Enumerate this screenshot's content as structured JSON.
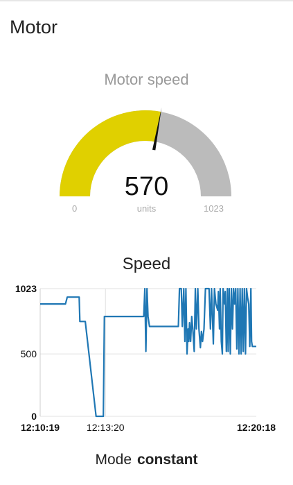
{
  "group": {
    "title": "Motor"
  },
  "gauge": {
    "title": "Motor speed",
    "value": "570",
    "value_num": 570,
    "min": "0",
    "max": "1023",
    "min_num": 0,
    "max_num": 1023,
    "units": "units",
    "fill_color": "#e0d000",
    "track_color": "#bbbbbb"
  },
  "chart": {
    "title": "Speed",
    "line_color": "#1f77b4"
  },
  "chart_data": {
    "type": "line",
    "title": "Speed",
    "xlabel": "",
    "ylabel": "",
    "ylim": [
      0,
      1023
    ],
    "y_ticks": [
      "1023",
      "500",
      "0"
    ],
    "x_ticks": [
      "12:10:19",
      "12:13:20",
      "12:20:18"
    ],
    "xlim_seconds": [
      0,
      599
    ],
    "grid": true,
    "series": [
      {
        "x": [
          0,
          70,
          75,
          108,
          110,
          115,
          125,
          155,
          160,
          165,
          175,
          178,
          287,
          290,
          293,
          296,
          299,
          303,
          318,
          323,
          383,
          386,
          388,
          391,
          394,
          398,
          401,
          404,
          407,
          410,
          412,
          414,
          417,
          420,
          423,
          427,
          430,
          433,
          437,
          440,
          444,
          447,
          450,
          454,
          458,
          462,
          468,
          472,
          475,
          480,
          483,
          487,
          492,
          494,
          497,
          499,
          502,
          505,
          507,
          511,
          513,
          516,
          519,
          521,
          524,
          527,
          530,
          533,
          536,
          539,
          542,
          545,
          548,
          551,
          554,
          557,
          560,
          563,
          566,
          569,
          572,
          575,
          578,
          581,
          584,
          586,
          588,
          591,
          594,
          599
        ],
        "y": [
          900,
          900,
          955,
          955,
          760,
          760,
          760,
          0,
          0,
          0,
          0,
          800,
          800,
          1023,
          520,
          1023,
          800,
          720,
          720,
          720,
          720,
          1023,
          1023,
          1023,
          720,
          1023,
          600,
          1023,
          500,
          700,
          600,
          750,
          600,
          800,
          700,
          520,
          1023,
          700,
          1023,
          700,
          550,
          680,
          600,
          700,
          1023,
          1023,
          1023,
          700,
          1023,
          580,
          1023,
          900,
          850,
          1000,
          700,
          1023,
          600,
          500,
          1023,
          900,
          1000,
          520,
          1023,
          520,
          1023,
          500,
          1023,
          700,
          1023,
          900,
          1023,
          540,
          1023,
          500,
          1023,
          500,
          1023,
          520,
          1023,
          500,
          1023,
          950,
          900,
          560,
          1023,
          600,
          560,
          560,
          560,
          560
        ]
      }
    ]
  },
  "mode": {
    "label": "Mode",
    "value": "constant"
  }
}
